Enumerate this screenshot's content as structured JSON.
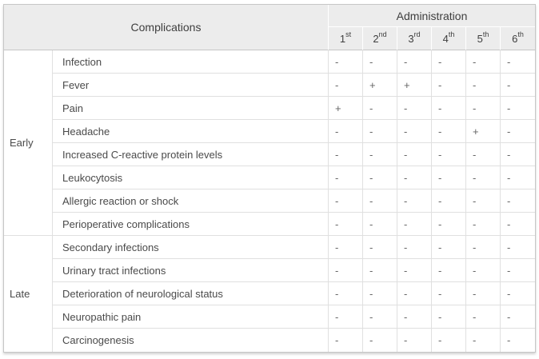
{
  "table": {
    "complications_header": "Complications",
    "administration_header": "Administration",
    "admin_columns": [
      {
        "num": "1",
        "suffix": "st"
      },
      {
        "num": "2",
        "suffix": "nd"
      },
      {
        "num": "3",
        "suffix": "rd"
      },
      {
        "num": "4",
        "suffix": "th"
      },
      {
        "num": "5",
        "suffix": "th"
      },
      {
        "num": "6",
        "suffix": "th"
      }
    ],
    "groups": [
      {
        "label": "Early",
        "rows": [
          {
            "name": "Infection",
            "values": [
              "-",
              "-",
              "-",
              "-",
              "-",
              "-"
            ]
          },
          {
            "name": "Fever",
            "values": [
              "-",
              "+",
              "+",
              "-",
              "-",
              "-"
            ]
          },
          {
            "name": "Pain",
            "values": [
              "+",
              "-",
              "-",
              "-",
              "-",
              "-"
            ]
          },
          {
            "name": "Headache",
            "values": [
              "-",
              "-",
              "-",
              "-",
              "+",
              "-"
            ]
          },
          {
            "name": "Increased C-reactive protein levels",
            "values": [
              "-",
              "-",
              "-",
              "-",
              "-",
              "-"
            ]
          },
          {
            "name": "Leukocytosis",
            "values": [
              "-",
              "-",
              "-",
              "-",
              "-",
              "-"
            ]
          },
          {
            "name": "Allergic reaction or shock",
            "values": [
              "-",
              "-",
              "-",
              "-",
              "-",
              "-"
            ]
          },
          {
            "name": "Perioperative complications",
            "values": [
              "-",
              "-",
              "-",
              "-",
              "-",
              "-"
            ]
          }
        ]
      },
      {
        "label": "Late",
        "rows": [
          {
            "name": "Secondary infections",
            "values": [
              "-",
              "-",
              "-",
              "-",
              "-",
              "-"
            ]
          },
          {
            "name": "Urinary tract infections",
            "values": [
              "-",
              "-",
              "-",
              "-",
              "-",
              "-"
            ]
          },
          {
            "name": "Deterioration of neurological status",
            "values": [
              "-",
              "-",
              "-",
              "-",
              "-",
              "-"
            ]
          },
          {
            "name": "Neuropathic pain",
            "values": [
              "-",
              "-",
              "-",
              "-",
              "-",
              "-"
            ]
          },
          {
            "name": "Carcinogenesis",
            "values": [
              "-",
              "-",
              "-",
              "-",
              "-",
              "-"
            ]
          }
        ]
      }
    ],
    "colors": {
      "header_bg": "#ececec",
      "outer_border": "#c6c6c6",
      "inner_border": "#e0e0e0",
      "header_separator": "#ffffff",
      "text": "#4a4a4a",
      "value_text": "#666666"
    }
  }
}
